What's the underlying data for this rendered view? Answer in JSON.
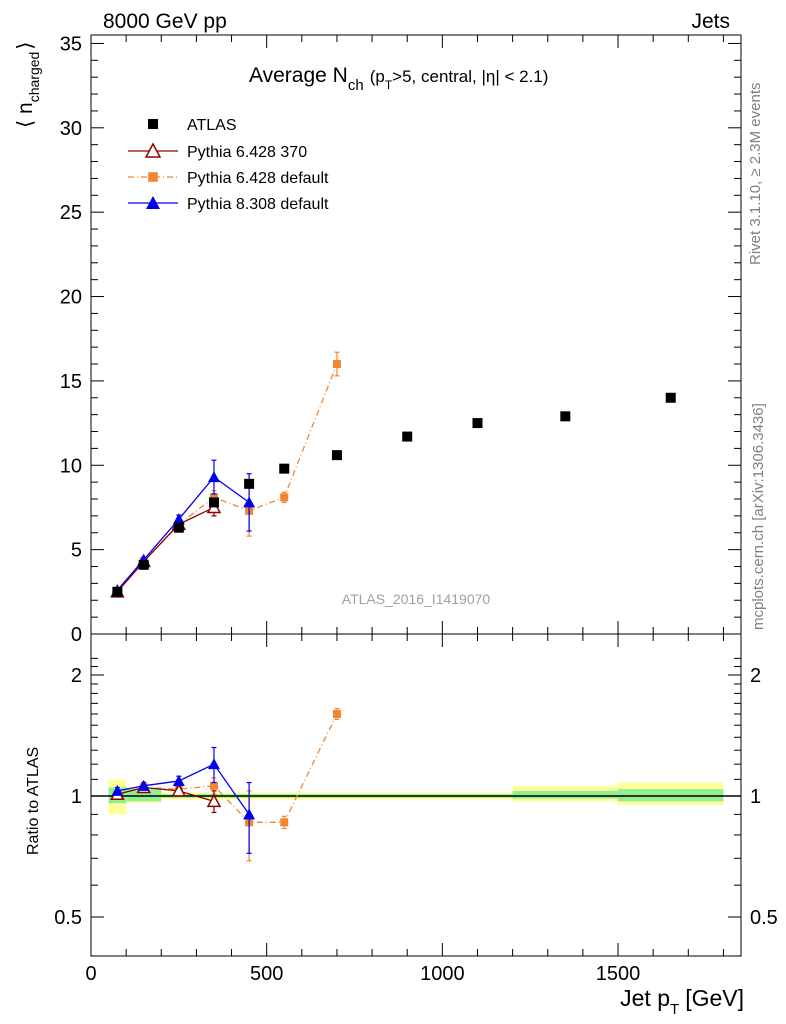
{
  "header": {
    "left": "8000 GeV pp",
    "right": "Jets"
  },
  "side_text": {
    "version": "Rivet 3.1.10, ≥ 2.3M events",
    "source": "mcplots.cern.ch [arXiv:1306.3436]"
  },
  "analysis_id": "ATLAS_2016_I1419070",
  "colors": {
    "data": "#000000",
    "pythia6_370": "#8b0000",
    "pythia6_default": "#f28532",
    "pythia8_default": "#0000ee",
    "band_inner": "#90f090",
    "band_outer": "#ffff99"
  },
  "chart_data": [
    {
      "type": "scatter",
      "title_main": "Average N",
      "title_sub": "ch",
      "title_rest": "(p",
      "title_rest_sub": "T",
      "title_tail": ">5, central, |η| < 2.1)",
      "ylabel": "⟨ n",
      "ylabel_sub": "charged",
      "ylabel_end": "⟩",
      "xlim": [
        0,
        1850
      ],
      "ylim": [
        0,
        35.5
      ],
      "yticks": [
        0,
        5,
        10,
        15,
        20,
        25,
        30,
        35
      ],
      "ytick_labels": [
        "0",
        "5",
        "10",
        "15",
        "20",
        "25",
        "30",
        "35"
      ],
      "series": [
        {
          "name": "ATLAS",
          "key": "atlas",
          "x": [
            75,
            150,
            250,
            350,
            450,
            550,
            700,
            900,
            1100,
            1350,
            1650
          ],
          "y": [
            2.5,
            4.1,
            6.3,
            7.8,
            8.9,
            9.8,
            10.6,
            11.7,
            12.5,
            12.9,
            14.0
          ],
          "err": [
            0,
            0,
            0,
            0,
            0,
            0,
            0,
            0,
            0,
            0,
            0
          ]
        },
        {
          "name": "Pythia 6.428 370",
          "key": "py6_370",
          "x": [
            75,
            150,
            250,
            350
          ],
          "y": [
            2.5,
            4.3,
            6.5,
            7.5
          ],
          "err": [
            0.1,
            0.15,
            0.2,
            0.5
          ]
        },
        {
          "name": "Pythia 6.428 default",
          "key": "py6_def",
          "x": [
            75,
            150,
            250,
            350,
            450,
            550,
            700
          ],
          "y": [
            2.5,
            4.3,
            6.5,
            8.1,
            7.3,
            8.1,
            16.0
          ],
          "err": [
            0.1,
            0.15,
            0.2,
            0.4,
            1.5,
            0.3,
            0.7
          ]
        },
        {
          "name": "Pythia 8.308 default",
          "key": "py8_def",
          "x": [
            75,
            150,
            250,
            350,
            450
          ],
          "y": [
            2.6,
            4.4,
            6.8,
            9.3,
            7.8
          ],
          "err": [
            0.1,
            0.15,
            0.25,
            1.0,
            1.7
          ]
        }
      ]
    },
    {
      "type": "scatter",
      "ylabel": "Ratio to ATLAS",
      "xlabel": "Jet p",
      "xlabel_sub": "T",
      "xlabel_unit": "[GeV]",
      "xlim": [
        0,
        1850
      ],
      "ylim": [
        0.35,
        2.3
      ],
      "yticks": [
        0.5,
        1,
        2
      ],
      "ytick_labels": [
        "0.5",
        "1",
        "2"
      ],
      "xticks": [
        0,
        500,
        1000,
        1500
      ],
      "xtick_labels": [
        "0",
        "500",
        "1000",
        "1500"
      ],
      "bands": [
        {
          "x0": 50,
          "x1": 100,
          "inner": [
            0.96,
            1.05
          ],
          "outer": [
            0.9,
            1.1
          ]
        },
        {
          "x0": 100,
          "x1": 200,
          "inner": [
            0.97,
            1.04
          ],
          "outer": [
            0.96,
            1.05
          ]
        },
        {
          "x0": 200,
          "x1": 1200,
          "inner": [
            0.99,
            1.01
          ],
          "outer": [
            0.98,
            1.02
          ]
        },
        {
          "x0": 1200,
          "x1": 1500,
          "inner": [
            0.985,
            1.03
          ],
          "outer": [
            0.97,
            1.06
          ]
        },
        {
          "x0": 1500,
          "x1": 1800,
          "inner": [
            0.97,
            1.04
          ],
          "outer": [
            0.95,
            1.08
          ]
        }
      ],
      "series": [
        {
          "name": "Pythia 6.428 370",
          "key": "py6_370",
          "x": [
            75,
            150,
            250,
            350
          ],
          "y": [
            1.01,
            1.05,
            1.03,
            0.97
          ],
          "err": [
            0.02,
            0.02,
            0.02,
            0.06
          ]
        },
        {
          "name": "Pythia 6.428 default",
          "key": "py6_def",
          "x": [
            75,
            150,
            250,
            350,
            450,
            550,
            700
          ],
          "y": [
            1.01,
            1.05,
            1.04,
            1.06,
            0.86,
            0.86,
            1.6
          ],
          "err": [
            0.02,
            0.02,
            0.02,
            0.05,
            0.17,
            0.03,
            0.05
          ]
        },
        {
          "name": "Pythia 8.308 default",
          "key": "py8_def",
          "x": [
            75,
            150,
            250,
            350,
            450
          ],
          "y": [
            1.03,
            1.06,
            1.09,
            1.2,
            0.9
          ],
          "err": [
            0.02,
            0.02,
            0.03,
            0.12,
            0.18
          ]
        }
      ]
    }
  ]
}
